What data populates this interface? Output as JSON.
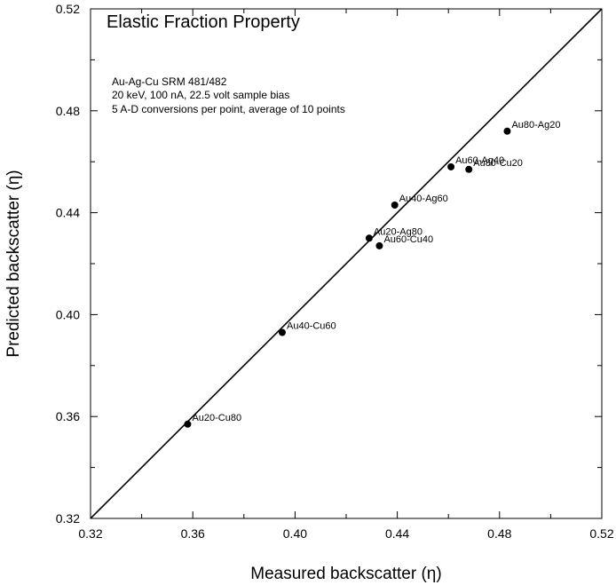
{
  "chart_data": {
    "type": "scatter",
    "title": "Elastic Fraction Property",
    "notes": [
      "Au-Ag-Cu SRM 481/482",
      "20 keV, 100 nA, 22.5 volt sample bias",
      "5 A-D conversions per point, average of 10 points"
    ],
    "xlabel": "Measured backscatter (η)",
    "ylabel": "Predicted backscatter (η)",
    "xlim": [
      0.32,
      0.52
    ],
    "ylim": [
      0.32,
      0.52
    ],
    "x_tick_labels": [
      "0.32",
      "0.36",
      "0.40",
      "0.44",
      "0.48",
      "0.52"
    ],
    "y_tick_labels": [
      "0.32",
      "0.36",
      "0.40",
      "0.44",
      "0.48",
      "0.52"
    ],
    "major_ticks": [
      0.32,
      0.36,
      0.4,
      0.44,
      0.48,
      0.52
    ],
    "minor_tick_step": 0.02,
    "grid": false,
    "reference_line": {
      "from": [
        0.32,
        0.32
      ],
      "to": [
        0.52,
        0.52
      ]
    },
    "points": [
      {
        "label": "Au20-Cu80",
        "x": 0.358,
        "y": 0.357
      },
      {
        "label": "Au40-Cu60",
        "x": 0.395,
        "y": 0.393
      },
      {
        "label": "Au20-Ag80",
        "x": 0.429,
        "y": 0.43
      },
      {
        "label": "Au60-Cu40",
        "x": 0.433,
        "y": 0.427
      },
      {
        "label": "Au40-Ag60",
        "x": 0.439,
        "y": 0.443
      },
      {
        "label": "Au60-Ag40",
        "x": 0.461,
        "y": 0.458
      },
      {
        "label": "Au80-Cu20",
        "x": 0.468,
        "y": 0.457
      },
      {
        "label": "Au80-Ag20",
        "x": 0.483,
        "y": 0.472
      }
    ]
  }
}
